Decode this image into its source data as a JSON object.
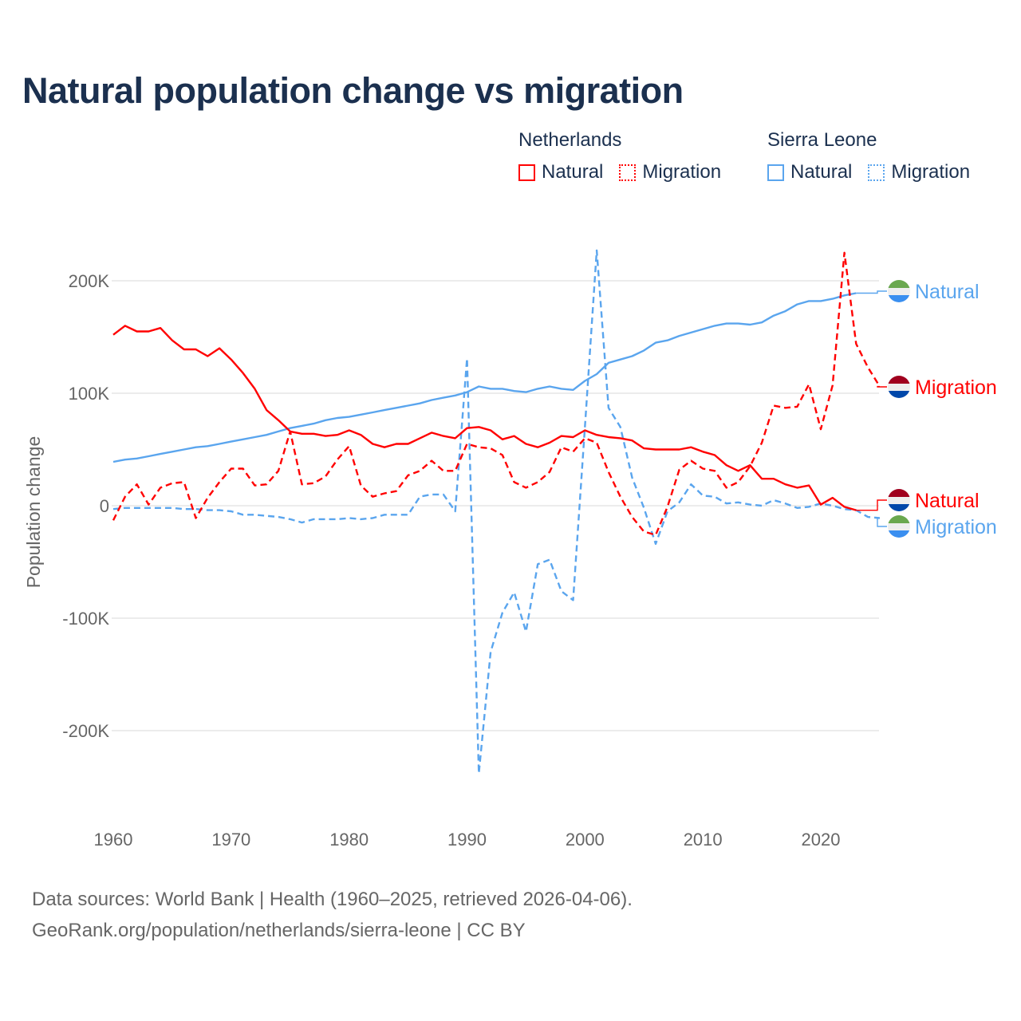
{
  "title": "Natural population change vs migration",
  "legend": {
    "groups": [
      {
        "name": "Netherlands",
        "items": [
          "Natural",
          "Migration"
        ]
      },
      {
        "name": "Sierra Leone",
        "items": [
          "Natural",
          "Migration"
        ]
      }
    ]
  },
  "footer": {
    "line1": "Data sources: World Bank | Health (1960–2025, retrieved 2026-04-06).",
    "line2": "GeoRank.org/population/netherlands/sierra-leone | CC BY"
  },
  "colors": {
    "netherlands": "#ff0000",
    "sierra_leone": "#5aa5ee",
    "title": "#1b304f"
  },
  "chart_data": {
    "type": "line",
    "title": "Natural population change vs migration",
    "xlabel": "",
    "ylabel": "Population change",
    "xlim": [
      1960,
      2025
    ],
    "ylim": [
      -250000,
      230000
    ],
    "x_ticks": [
      {
        "v": 1960,
        "label": "1960"
      },
      {
        "v": 1970,
        "label": "1970"
      },
      {
        "v": 1980,
        "label": "1980"
      },
      {
        "v": 1990,
        "label": "1990"
      },
      {
        "v": 2000,
        "label": "2000"
      },
      {
        "v": 2010,
        "label": "2010"
      },
      {
        "v": 2020,
        "label": "2020"
      }
    ],
    "y_ticks": [
      {
        "v": 200000,
        "label": "200K"
      },
      {
        "v": 100000,
        "label": "100K"
      },
      {
        "v": 0,
        "label": "0"
      },
      {
        "v": -100000,
        "label": "-100K"
      },
      {
        "v": -200000,
        "label": "-200K"
      }
    ],
    "grid": true,
    "legend_position": "top-right",
    "series": [
      {
        "name": "Netherlands Natural",
        "country": "Netherlands",
        "kind": "Natural",
        "end_label": "Natural",
        "color": "#ff0000",
        "dash": false,
        "start": 1960,
        "values": [
          152,
          160,
          155,
          155,
          158,
          147,
          139,
          139,
          133,
          140,
          130,
          118,
          104,
          85,
          76,
          66,
          64,
          64,
          62,
          63,
          67,
          63,
          55,
          52,
          55,
          55,
          60,
          65,
          62,
          60,
          69,
          70,
          67,
          59,
          62,
          55,
          52,
          56,
          62,
          61,
          67,
          63,
          61,
          60,
          58,
          51,
          50,
          50,
          50,
          52,
          48,
          45,
          36,
          31,
          36,
          24,
          24,
          19,
          16,
          18,
          1,
          7,
          -1,
          -4
        ]
      },
      {
        "name": "Netherlands Migration",
        "country": "Netherlands",
        "kind": "Migration",
        "end_label": "Migration",
        "color": "#ff0000",
        "dash": true,
        "start": 1960,
        "values": [
          -13,
          8,
          19,
          1,
          16,
          20,
          21,
          -11,
          7,
          21,
          33,
          33,
          18,
          19,
          31,
          66,
          19,
          20,
          26,
          41,
          53,
          18,
          8,
          11,
          13,
          27,
          31,
          40,
          31,
          31,
          55,
          52,
          51,
          45,
          21,
          16,
          21,
          30,
          52,
          48,
          60,
          56,
          30,
          8,
          -10,
          -23,
          -26,
          -1,
          32,
          40,
          33,
          31,
          16,
          21,
          35,
          56,
          89,
          87,
          88,
          108,
          68,
          107,
          225,
          144,
          123,
          106
        ]
      },
      {
        "name": "Sierra Leone Natural",
        "country": "Sierra Leone",
        "kind": "Natural",
        "end_label": "Natural",
        "color": "#5aa5ee",
        "dash": false,
        "start": 1960,
        "values": [
          39,
          41,
          42,
          44,
          46,
          48,
          50,
          52,
          53,
          55,
          57,
          59,
          61,
          63,
          66,
          69,
          71,
          73,
          76,
          78,
          79,
          81,
          83,
          85,
          87,
          89,
          91,
          94,
          96,
          98,
          101,
          106,
          104,
          104,
          102,
          101,
          104,
          106,
          104,
          103,
          111,
          117,
          127,
          130,
          133,
          138,
          145,
          147,
          151,
          154,
          157,
          160,
          162,
          162,
          161,
          163,
          169,
          173,
          179,
          182,
          182,
          184,
          187,
          189
        ]
      },
      {
        "name": "Sierra Leone Migration",
        "country": "Sierra Leone",
        "kind": "Migration",
        "end_label": "Migration",
        "color": "#5aa5ee",
        "dash": true,
        "start": 1960,
        "values": [
          -3,
          -2,
          -2,
          -2,
          -2,
          -2,
          -3,
          -3,
          -4,
          -4,
          -5,
          -8,
          -8,
          -9,
          -10,
          -12,
          -15,
          -12,
          -12,
          -12,
          -11,
          -12,
          -11,
          -8,
          -8,
          -8,
          8,
          10,
          10,
          -5,
          131,
          -238,
          -130,
          -95,
          -77,
          -112,
          -52,
          -48,
          -76,
          -84,
          70,
          227,
          87,
          70,
          25,
          -2,
          -34,
          -5,
          3,
          19,
          9,
          8,
          2,
          3,
          1,
          0,
          5,
          2,
          -2,
          -1,
          2,
          0,
          -3,
          -4,
          -10,
          -11
        ]
      }
    ],
    "value_unit": "thousands"
  }
}
